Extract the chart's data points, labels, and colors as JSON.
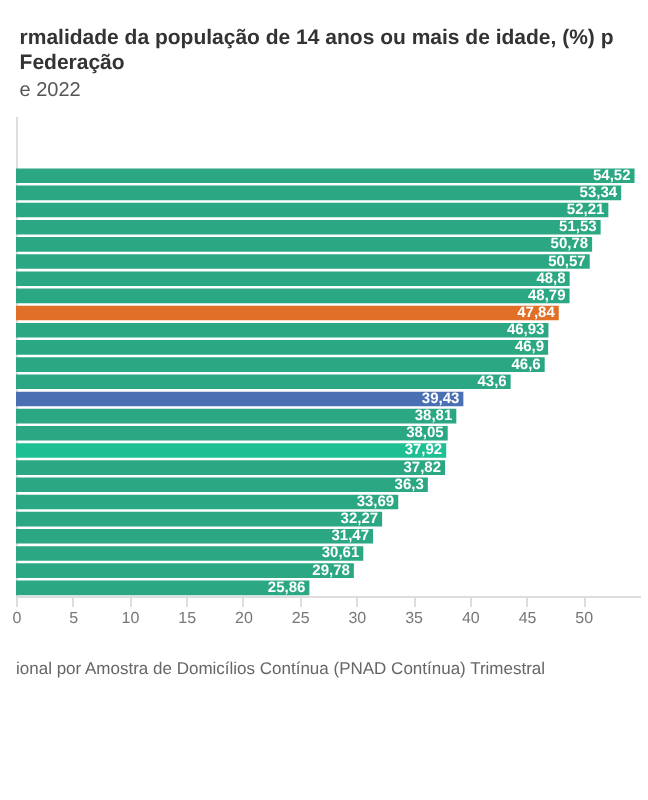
{
  "chart_data": {
    "type": "bar",
    "orientation": "horizontal",
    "title": [
      "rmalidade da população de 14 anos ou mais de idade, (%) p",
      "Federação"
    ],
    "subtitle": "e 2022",
    "annotations": [
      "ional por Amostra de Domicílios Contínua (PNAD Contínua) Trimestral"
    ],
    "categories": [
      null,
      null,
      null,
      null,
      null,
      null,
      null,
      null,
      null,
      null,
      null,
      null,
      null,
      null,
      null,
      null,
      null,
      null,
      null,
      null,
      null,
      null,
      null,
      null,
      null,
      null,
      null,
      null
    ],
    "values": [
      null,
      null,
      null,
      54.52,
      53.34,
      52.21,
      51.53,
      50.78,
      50.57,
      48.8,
      48.79,
      47.84,
      46.93,
      46.9,
      46.6,
      43.6,
      39.43,
      38.81,
      38.05,
      37.92,
      37.82,
      36.3,
      33.69,
      32.27,
      31.47,
      30.61,
      29.78,
      25.86
    ],
    "value_labels": [
      null,
      null,
      null,
      "54,52",
      "53,34",
      "52,21",
      "51,53",
      "50,78",
      "50,57",
      "48,8",
      "48,79",
      "47,84",
      "46,93",
      "46,9",
      "46,6",
      "43,6",
      "39,43",
      "38,81",
      "38,05",
      "37,92",
      "37,82",
      "36,3",
      "33,69",
      "32,27",
      "31,47",
      "30,61",
      "29,78",
      "25,86"
    ],
    "colors": [
      "#2ba883",
      "#2ba883",
      "#2ba883",
      "#2ba883",
      "#2ba883",
      "#2ba883",
      "#2ba883",
      "#2ba883",
      "#2ba883",
      "#2ba883",
      "#2ba883",
      "#e07028",
      "#2ba883",
      "#2ba883",
      "#2ba883",
      "#2ba883",
      "#4b6fb3",
      "#2ba883",
      "#2ba883",
      "#1fbf94",
      "#2ba883",
      "#2ba883",
      "#2ba883",
      "#2ba883",
      "#2ba883",
      "#2ba883",
      "#2ba883",
      "#2ba883"
    ],
    "xlim": [
      0,
      55
    ],
    "xticks": [
      0,
      5,
      10,
      15,
      20,
      25,
      30,
      35,
      40,
      45,
      50
    ],
    "grid": false
  }
}
